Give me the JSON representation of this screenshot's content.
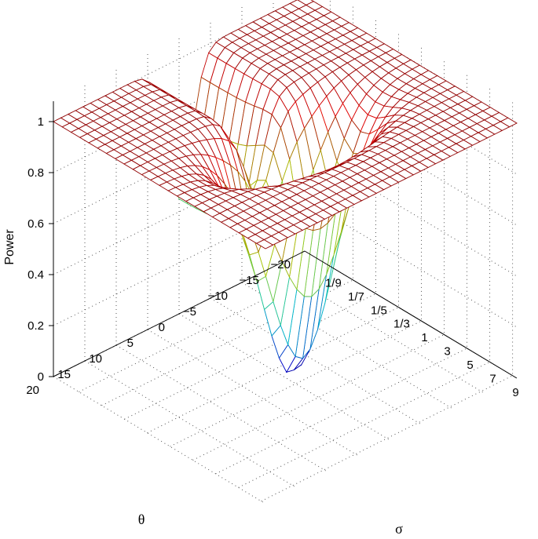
{
  "chart_data": {
    "type": "surface",
    "title": "",
    "zlabel": "Power",
    "xlabel": "σ",
    "ylabel": "θ",
    "zlim": [
      0,
      1
    ],
    "z_ticks": [
      "0",
      "0.2",
      "0.4",
      "0.6",
      "0.8",
      "1"
    ],
    "sigma_ticks": [
      "1/9",
      "1/7",
      "1/5",
      "1/3",
      "1",
      "3",
      "5",
      "7",
      "9"
    ],
    "theta_ticks": [
      "20",
      "15",
      "10",
      "5",
      "0",
      "−5",
      "−10",
      "−15",
      "−20"
    ],
    "grid": true,
    "colormap": "jet",
    "sigma_range": [
      0.111,
      9
    ],
    "theta_range": [
      -20,
      20
    ],
    "minimum": {
      "sigma": 1,
      "theta": 0,
      "power": 0.05
    }
  }
}
